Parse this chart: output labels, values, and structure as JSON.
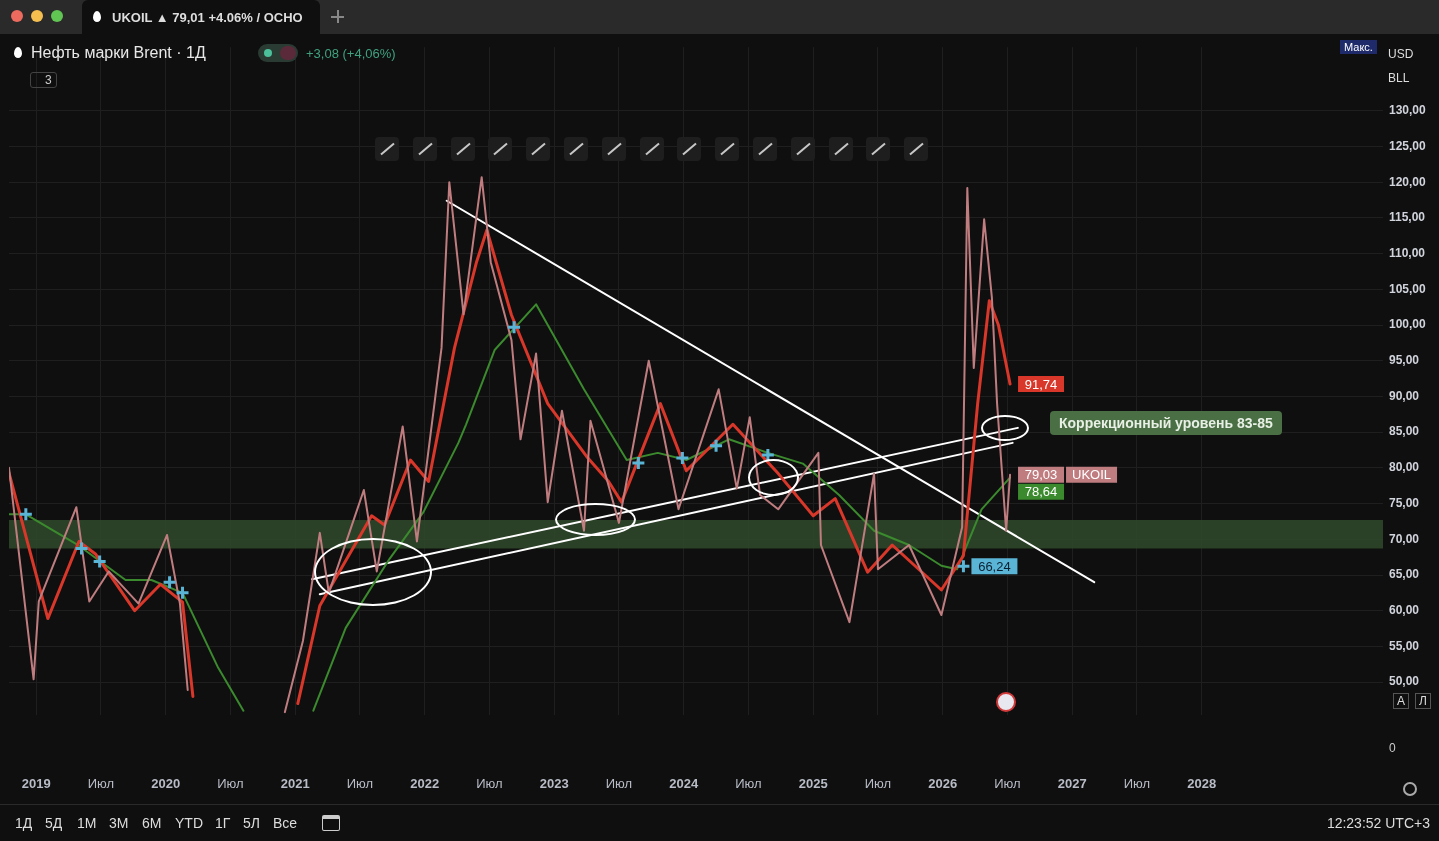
{
  "chart_data": {
    "type": "line",
    "title": "Нефть марки Brent · 1Д",
    "subtitle": "+3,08 (+4,06%)",
    "marker": "none",
    "grid": true,
    "xlim": [
      2018.79,
      2029.4
    ],
    "xticks": [
      2019,
      {
        "value": 2019.5,
        "label": "Июл"
      },
      2020,
      {
        "value": 2020.5,
        "label": "Июл"
      },
      2021,
      {
        "value": 2021.5,
        "label": "Июл"
      },
      2022,
      {
        "value": 2022.5,
        "label": "Июл"
      },
      2023,
      {
        "value": 2023.5,
        "label": "Июл"
      },
      2024,
      {
        "value": 2024.5,
        "label": "Июл"
      },
      2025,
      {
        "value": 2025.5,
        "label": "Июл"
      },
      2026,
      {
        "value": 2026.5,
        "label": "Июл"
      },
      2027,
      {
        "value": 2027.5,
        "label": "Июл"
      },
      2028
    ],
    "ylim": [
      45.4,
      138.9
    ],
    "yticks": [
      {
        "value": 50,
        "label": "50,00"
      },
      {
        "value": 55,
        "label": "55,00"
      },
      {
        "value": 60,
        "label": "60,00"
      },
      {
        "value": 65,
        "label": "65,00"
      },
      {
        "value": 70,
        "label": "70,00"
      },
      {
        "value": 75,
        "label": "75,00"
      },
      {
        "value": 80,
        "label": "80,00"
      },
      {
        "value": 85,
        "label": "85,00"
      },
      {
        "value": 90,
        "label": "90,00"
      },
      {
        "value": 95,
        "label": "95,00"
      },
      {
        "value": 100,
        "label": "100,00"
      },
      {
        "value": 105,
        "label": "105,00"
      },
      {
        "value": 110,
        "label": "110,00"
      },
      {
        "value": 115,
        "label": "115,00"
      },
      {
        "value": 120,
        "label": "120,00"
      },
      {
        "value": 125,
        "label": "125,00"
      },
      {
        "value": 130,
        "label": "130,00"
      }
    ],
    "bands": [
      {
        "axis": "y",
        "from": 68.7,
        "to": 72.7,
        "color": "#2f4a2c"
      }
    ],
    "series": [
      {
        "name": "UKOIL",
        "color": "#c07d80",
        "x": [
          2018.79,
          2018.98,
          2019.02,
          2019.31,
          2019.41,
          2019.56,
          2019.79,
          2020.01,
          2020.11,
          2020.17,
          2020.5,
          2020.92,
          2021.06,
          2021.19,
          2021.26,
          2021.53,
          2021.63,
          2021.83,
          2021.94,
          2022.13,
          2022.19,
          2022.3,
          2022.44,
          2022.51,
          2022.67,
          2022.74,
          2022.86,
          2022.95,
          2023.06,
          2023.23,
          2023.28,
          2023.5,
          2023.73,
          2023.96,
          2024.27,
          2024.41,
          2024.51,
          2024.59,
          2024.73,
          2025.04,
          2025.06,
          2025.28,
          2025.47,
          2025.5,
          2025.74,
          2025.99,
          2026.15,
          2026.19,
          2026.24,
          2026.32,
          2026.38,
          2026.42,
          2026.49,
          2026.52
        ],
        "values": [
          80,
          50.4,
          61.3,
          74.5,
          61.3,
          65.5,
          61,
          70.6,
          61,
          48.9,
          null,
          45.8,
          55.8,
          70.9,
          62.5,
          76.9,
          65.5,
          85.8,
          69.7,
          96.8,
          120,
          101.5,
          120.7,
          108.8,
          97.9,
          84,
          96,
          75.2,
          88,
          71.2,
          86.6,
          72.3,
          95,
          74.2,
          91,
          77.1,
          87.1,
          76.2,
          74.2,
          82.1,
          69.2,
          58.4,
          79.2,
          65.8,
          69.2,
          59.4,
          71.7,
          119.2,
          94,
          114.8,
          103.8,
          89,
          71.2,
          79.03
        ],
        "value_labels": [
          null,
          null,
          null,
          null,
          null,
          null,
          null,
          null,
          null,
          null,
          null,
          null,
          null,
          null,
          null,
          null,
          null,
          null,
          null,
          null,
          null,
          null,
          null,
          null,
          null,
          null,
          null,
          null,
          null,
          null,
          null,
          null,
          null,
          null,
          null,
          null,
          null,
          null,
          null,
          null,
          null,
          null,
          null,
          null,
          null,
          null,
          null,
          null,
          null,
          null,
          null,
          null,
          null,
          "79,03"
        ]
      },
      {
        "color": "#d8372a",
        "x": [
          2018.79,
          2019.09,
          2019.33,
          2019.46,
          2019.76,
          2019.96,
          2020.13,
          2020.21,
          2020.5,
          2021.02,
          2021.19,
          2021.59,
          2021.69,
          2021.89,
          2022.03,
          2022.23,
          2022.4,
          2022.48,
          2022.67,
          2022.95,
          2023.25,
          2023.42,
          2023.52,
          2023.82,
          2024.02,
          2024.38,
          2024.73,
          2025,
          2025.17,
          2025.42,
          2025.61,
          2025.99,
          2026.16,
          2026.27,
          2026.36,
          2026.43,
          2026.52
        ],
        "values": [
          79.3,
          58.9,
          69.7,
          67.9,
          60,
          63.7,
          61.2,
          48,
          null,
          47,
          60.7,
          73.3,
          72,
          81.1,
          78.1,
          96.8,
          108.8,
          113.3,
          101.4,
          89,
          81.6,
          78.1,
          75.2,
          89,
          79.6,
          86.1,
          79.2,
          73.3,
          75.7,
          65.4,
          69.2,
          62.9,
          67.7,
          89,
          103.4,
          100,
          91.74
        ],
        "value_labels": [
          null,
          null,
          null,
          null,
          null,
          null,
          null,
          null,
          null,
          null,
          null,
          null,
          null,
          null,
          null,
          null,
          null,
          null,
          null,
          null,
          null,
          null,
          null,
          null,
          null,
          null,
          null,
          null,
          null,
          null,
          null,
          null,
          null,
          null,
          null,
          null,
          "91,74"
        ]
      },
      {
        "color": "#3b8a2e",
        "x": [
          2018.79,
          2018.92,
          2019.33,
          2019.69,
          2019.89,
          2020.13,
          2020.4,
          2020.6,
          2020.8,
          2021.14,
          2021.39,
          2021.73,
          2021.99,
          2022.26,
          2022.32,
          2022.54,
          2022.86,
          2023.23,
          2023.56,
          2023.8,
          2024.02,
          2024.35,
          2024.65,
          2024.92,
          2025.2,
          2025.47,
          2025.74,
          2025.99,
          2026.11,
          2026.3,
          2026.52
        ],
        "values": [
          73.5,
          73.5,
          69.1,
          64.3,
          64.3,
          62.5,
          52.2,
          46,
          null,
          46,
          57.6,
          67.3,
          73.8,
          83.5,
          86.1,
          96.5,
          102.9,
          91,
          81.1,
          82.1,
          81.1,
          84,
          82.1,
          80.6,
          76.2,
          71.2,
          69.2,
          66.3,
          65.8,
          74.2,
          78.64
        ],
        "value_labels": [
          null,
          null,
          null,
          null,
          null,
          null,
          null,
          null,
          null,
          null,
          null,
          null,
          null,
          null,
          null,
          null,
          null,
          null,
          null,
          null,
          null,
          null,
          null,
          null,
          null,
          null,
          null,
          null,
          null,
          null,
          "78,64"
        ]
      },
      {
        "type": "scatter",
        "marker": "cross",
        "color": "#5ab4d6",
        "x": [
          2018.92,
          2019.35,
          2019.49,
          2020.03,
          2020.13,
          2022.69,
          2023.65,
          2023.99,
          2024.25,
          2024.65,
          2026.16
        ],
        "values": [
          73.5,
          68.7,
          66.9,
          64,
          62.5,
          99.7,
          80.7,
          81.4,
          83.1,
          81.8,
          66.24
        ],
        "value_labels": [
          null,
          null,
          null,
          null,
          null,
          null,
          null,
          null,
          null,
          null,
          "66,24"
        ]
      },
      {
        "color": "#ffffff",
        "x": [
          2022.17,
          2027.17
        ],
        "values": [
          117.4,
          64
        ]
      },
      {
        "color": "#ffffff",
        "x": [
          2021.13,
          2026.58
        ],
        "values": [
          64.4,
          85.6
        ]
      },
      {
        "color": "#ffffff",
        "x": [
          2021.19,
          2026.54
        ],
        "values": [
          62.3,
          83.5
        ]
      }
    ],
    "annotations": [
      "Коррекционный уровень 83-85",
      "UKOIL ▲ 79,01 +4.06% / ОСНО",
      "3",
      "Макс.",
      "USD",
      "BLL",
      "A",
      "Л",
      "0",
      "1Д",
      "5Д",
      "1М",
      "3М",
      "6М",
      "YTD",
      "1Г",
      "5Л",
      "Все",
      "12:23:52 UTC+3"
    ]
  }
}
